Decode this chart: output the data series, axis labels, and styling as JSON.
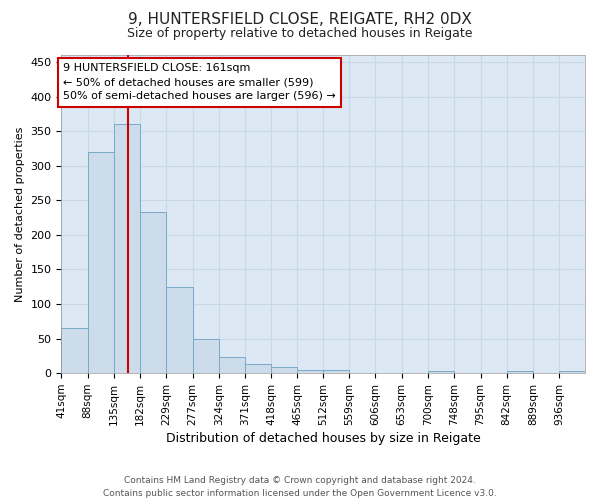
{
  "title1": "9, HUNTERSFIELD CLOSE, REIGATE, RH2 0DX",
  "title2": "Size of property relative to detached houses in Reigate",
  "xlabel": "Distribution of detached houses by size in Reigate",
  "ylabel": "Number of detached properties",
  "bar_edges": [
    41,
    88,
    135,
    182,
    229,
    277,
    324,
    371,
    418,
    465,
    512,
    559,
    606,
    653,
    700,
    748,
    795,
    842,
    889,
    936,
    983
  ],
  "bar_heights": [
    65,
    320,
    360,
    233,
    125,
    50,
    23,
    14,
    9,
    5,
    4,
    1,
    0,
    0,
    3,
    0,
    0,
    3,
    0,
    3
  ],
  "bar_color": "#cddceb",
  "bar_edgecolor": "#7aaac8",
  "vline_x": 161,
  "vline_color": "#cc0000",
  "annotation_text": "9 HUNTERSFIELD CLOSE: 161sqm\n← 50% of detached houses are smaller (599)\n50% of semi-detached houses are larger (596) →",
  "annotation_box_facecolor": "#ffffff",
  "annotation_box_edgecolor": "#cc0000",
  "ylim": [
    0,
    460
  ],
  "yticks": [
    0,
    50,
    100,
    150,
    200,
    250,
    300,
    350,
    400,
    450
  ],
  "footer": "Contains HM Land Registry data © Crown copyright and database right 2024.\nContains public sector information licensed under the Open Government Licence v3.0.",
  "grid_color": "#c8d8e8",
  "bg_color": "#dce8f4",
  "fig_bg_color": "#ffffff",
  "title1_fontsize": 11,
  "title2_fontsize": 9,
  "ylabel_fontsize": 8,
  "xlabel_fontsize": 9
}
